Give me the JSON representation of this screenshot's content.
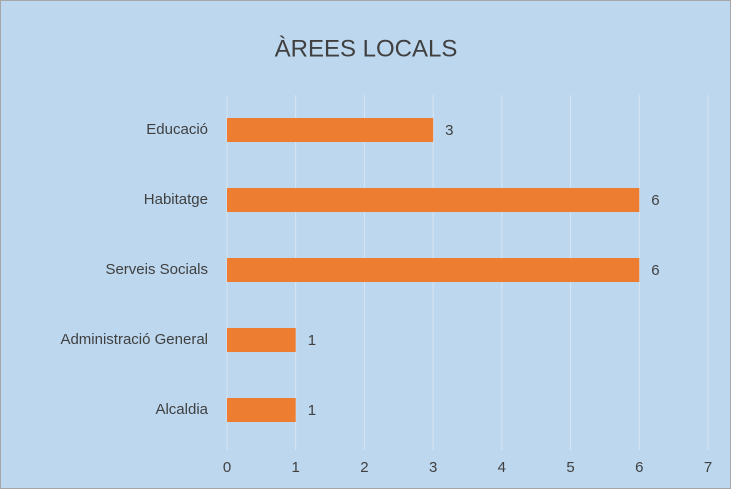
{
  "chart_data": {
    "type": "bar",
    "orientation": "horizontal",
    "title": "ÀREES LOCALS",
    "categories": [
      "Educació",
      "Habitatge",
      "Serveis Socials",
      "Administració General",
      "Alcaldia"
    ],
    "values": [
      3,
      6,
      6,
      1,
      1
    ],
    "color": "#ed7d31",
    "xlim": [
      0,
      7
    ],
    "xticks": [
      0,
      1,
      2,
      3,
      4,
      5,
      6,
      7
    ],
    "grid": true,
    "data_labels": true
  }
}
